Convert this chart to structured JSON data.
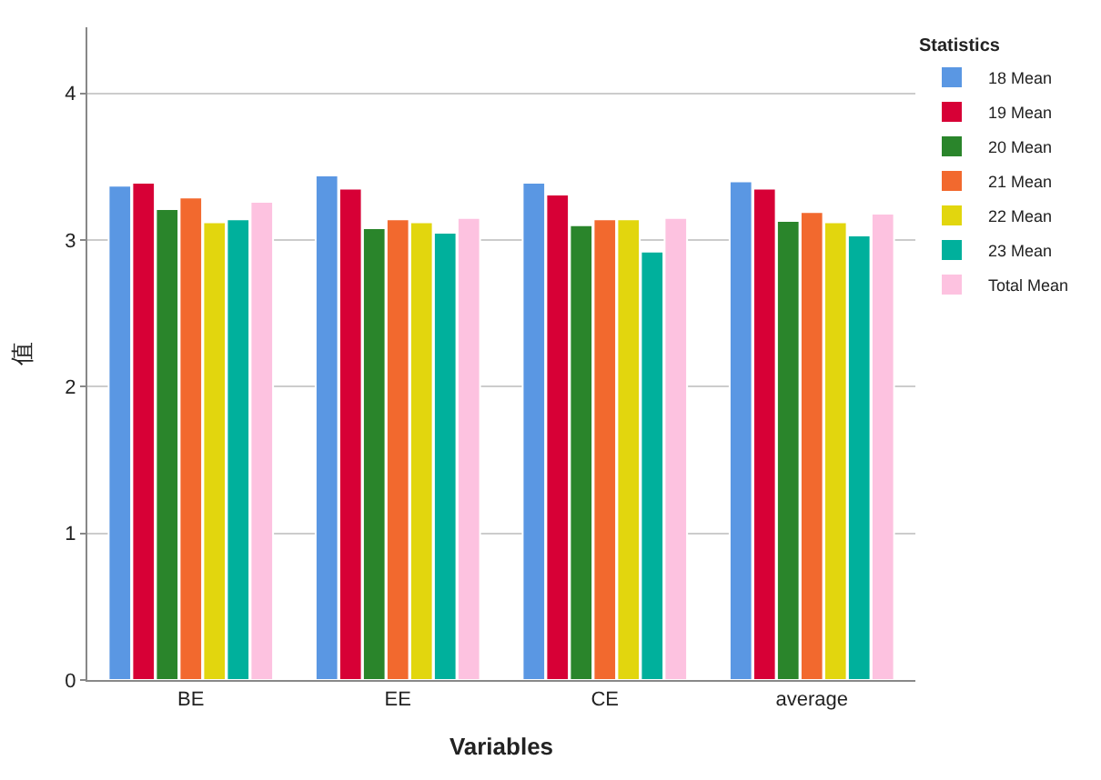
{
  "chart_data": {
    "type": "bar",
    "xlabel": "Variables",
    "ylabel": "值",
    "legend_title": "Statistics",
    "categories": [
      "BE",
      "EE",
      "CE",
      "average"
    ],
    "series": [
      {
        "name": "18 Mean",
        "color": "#5a97e3",
        "values": [
          3.37,
          3.44,
          3.39,
          3.4
        ]
      },
      {
        "name": "19 Mean",
        "color": "#d70036",
        "values": [
          3.39,
          3.35,
          3.31,
          3.35
        ]
      },
      {
        "name": "20 Mean",
        "color": "#2a852b",
        "values": [
          3.21,
          3.08,
          3.1,
          3.13
        ]
      },
      {
        "name": "21 Mean",
        "color": "#f2692e",
        "values": [
          3.29,
          3.14,
          3.14,
          3.19
        ]
      },
      {
        "name": "22 Mean",
        "color": "#e2d60e",
        "values": [
          3.12,
          3.12,
          3.14,
          3.12
        ]
      },
      {
        "name": "23 Mean",
        "color": "#00b09c",
        "values": [
          3.14,
          3.05,
          2.92,
          3.03
        ]
      },
      {
        "name": "Total Mean",
        "color": "#fdc2e0",
        "values": [
          3.26,
          3.15,
          3.15,
          3.18
        ]
      }
    ],
    "ylim": [
      0,
      4.45
    ],
    "yticks": [
      0,
      1,
      2,
      3,
      4
    ],
    "grid": "y",
    "legend": "top right"
  }
}
